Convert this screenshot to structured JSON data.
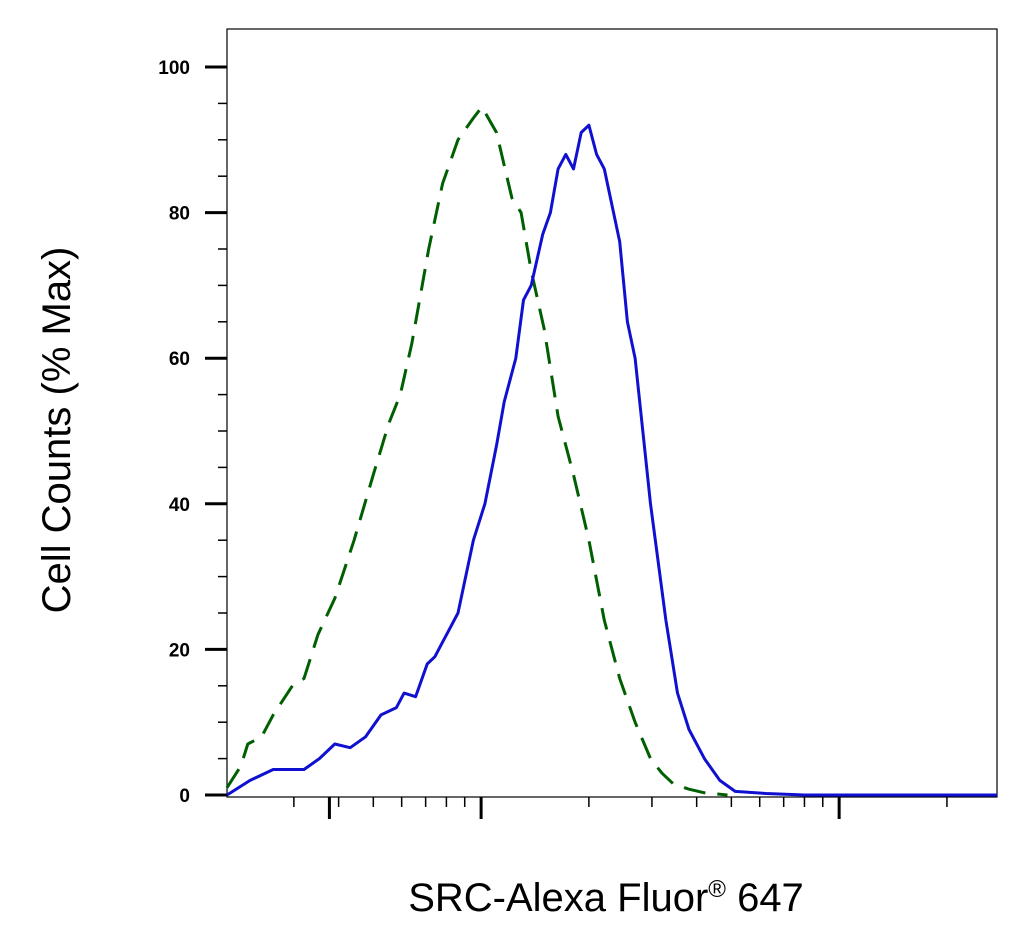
{
  "chart_data": {
    "type": "line",
    "title": "",
    "xlabel": "SRC-Alexa Fluor",
    "xlabel_superscript": "®",
    "xlabel_suffix": " 647",
    "ylabel": "Cell Counts (% Max)",
    "x_scale": "log",
    "x_tick_labels": [],
    "ylim": [
      0,
      105
    ],
    "y_ticks": [
      0,
      20,
      40,
      60,
      80,
      100
    ],
    "grid": false,
    "legend": "none",
    "series": [
      {
        "color": "#005f00",
        "dash": "dashed",
        "points": [
          [
            0,
            1
          ],
          [
            0.018,
            4
          ],
          [
            0.027,
            7
          ],
          [
            0.045,
            8
          ],
          [
            0.06,
            11
          ],
          [
            0.085,
            15
          ],
          [
            0.1,
            16
          ],
          [
            0.118,
            22
          ],
          [
            0.14,
            27
          ],
          [
            0.165,
            35
          ],
          [
            0.19,
            44
          ],
          [
            0.21,
            51
          ],
          [
            0.225,
            55
          ],
          [
            0.24,
            62
          ],
          [
            0.262,
            75
          ],
          [
            0.28,
            84
          ],
          [
            0.3,
            90
          ],
          [
            0.32,
            93
          ],
          [
            0.331,
            94.5
          ],
          [
            0.35,
            91
          ],
          [
            0.37,
            82
          ],
          [
            0.382,
            80
          ],
          [
            0.395,
            72
          ],
          [
            0.412,
            64
          ],
          [
            0.43,
            52
          ],
          [
            0.45,
            44
          ],
          [
            0.47,
            35
          ],
          [
            0.49,
            24
          ],
          [
            0.51,
            16
          ],
          [
            0.53,
            10
          ],
          [
            0.55,
            5
          ],
          [
            0.565,
            3
          ],
          [
            0.58,
            1.5
          ],
          [
            0.6,
            0.8
          ],
          [
            0.62,
            0.3
          ],
          [
            0.65,
            0
          ]
        ]
      },
      {
        "color": "#1010d0",
        "dash": "solid",
        "points": [
          [
            0,
            0
          ],
          [
            0.03,
            2
          ],
          [
            0.06,
            3.5
          ],
          [
            0.1,
            3.5
          ],
          [
            0.12,
            5
          ],
          [
            0.14,
            7
          ],
          [
            0.16,
            6.5
          ],
          [
            0.18,
            8
          ],
          [
            0.2,
            11
          ],
          [
            0.22,
            12
          ],
          [
            0.23,
            14
          ],
          [
            0.245,
            13.5
          ],
          [
            0.26,
            18
          ],
          [
            0.27,
            19
          ],
          [
            0.28,
            21
          ],
          [
            0.29,
            23
          ],
          [
            0.3,
            25
          ],
          [
            0.31,
            30
          ],
          [
            0.32,
            35
          ],
          [
            0.335,
            40
          ],
          [
            0.35,
            48
          ],
          [
            0.36,
            54
          ],
          [
            0.375,
            60
          ],
          [
            0.385,
            68
          ],
          [
            0.395,
            70
          ],
          [
            0.41,
            77
          ],
          [
            0.42,
            80
          ],
          [
            0.43,
            86
          ],
          [
            0.44,
            88
          ],
          [
            0.45,
            86
          ],
          [
            0.46,
            91
          ],
          [
            0.47,
            92
          ],
          [
            0.48,
            88
          ],
          [
            0.49,
            86
          ],
          [
            0.5,
            81
          ],
          [
            0.51,
            76
          ],
          [
            0.52,
            65
          ],
          [
            0.53,
            60
          ],
          [
            0.54,
            50
          ],
          [
            0.55,
            40
          ],
          [
            0.56,
            32
          ],
          [
            0.57,
            24
          ],
          [
            0.585,
            14
          ],
          [
            0.6,
            9
          ],
          [
            0.62,
            5
          ],
          [
            0.64,
            2
          ],
          [
            0.66,
            0.5
          ],
          [
            0.7,
            0.2
          ],
          [
            0.75,
            0
          ],
          [
            0.85,
            0
          ],
          [
            1,
            0
          ]
        ]
      }
    ]
  }
}
